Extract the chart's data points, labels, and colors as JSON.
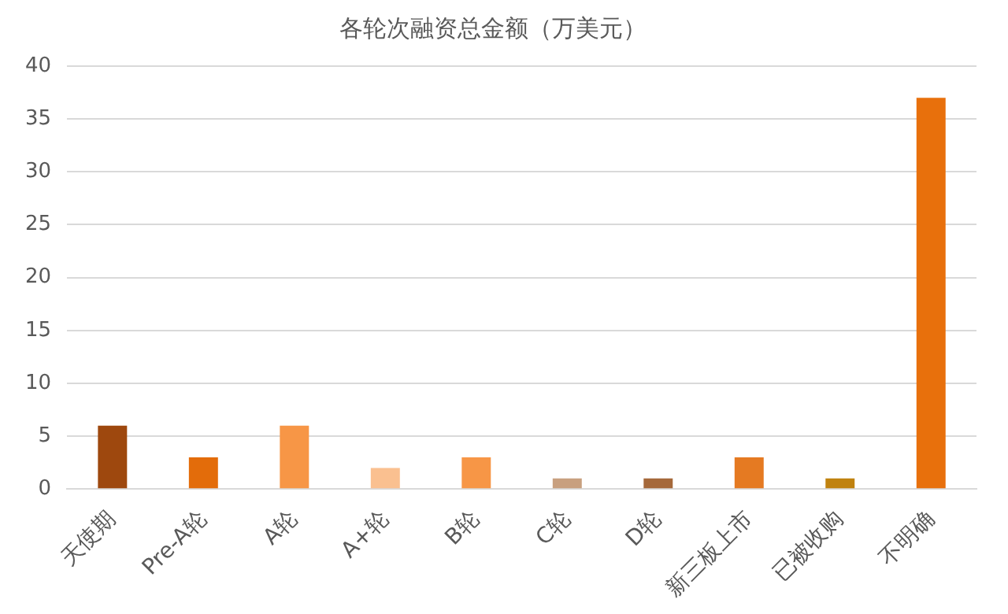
{
  "chart_data": {
    "type": "bar",
    "title": "各轮次融资总金额（万美元）",
    "categories": [
      "天使期",
      "Pre-A轮",
      "A轮",
      "A+轮",
      "B轮",
      "C轮",
      "D轮",
      "新三板上市",
      "已被收购",
      "不明确"
    ],
    "values": [
      6,
      3,
      6,
      2,
      3,
      1,
      1,
      3,
      1,
      37
    ],
    "colors": [
      "#9e480e",
      "#e36c0a",
      "#f79646",
      "#fac090",
      "#f79646",
      "#c8a07f",
      "#a5683a",
      "#e57a22",
      "#c0820f",
      "#e8700c"
    ],
    "ylim": [
      0,
      40
    ],
    "yticks": [
      0,
      5,
      10,
      15,
      20,
      25,
      30,
      35,
      40
    ],
    "grid": "y",
    "legend": false
  }
}
